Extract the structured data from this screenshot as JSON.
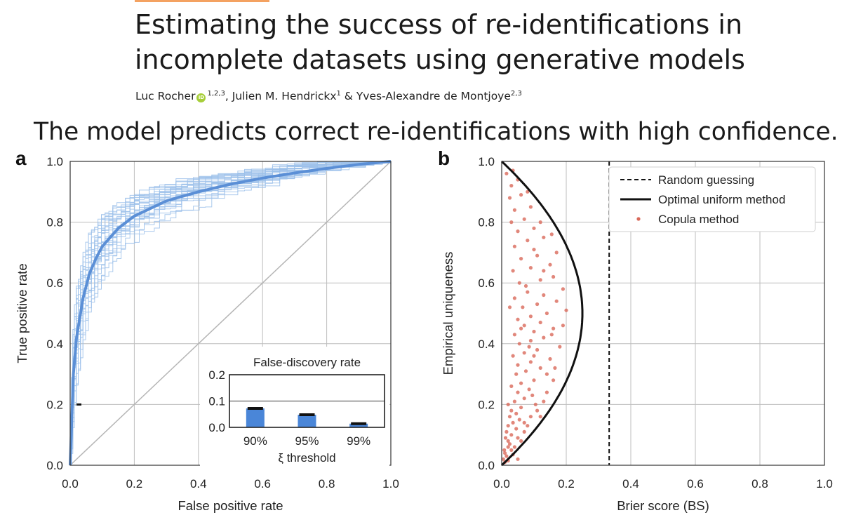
{
  "header": {
    "title_line1": "Estimating the success of re-identifications in",
    "title_line2": "incomplete datasets using generative models",
    "authors": [
      {
        "name": "Luc Rocher",
        "sup": "1,2,3",
        "orcid": true,
        "sep": ", "
      },
      {
        "name": "Julien M. Hendrickx",
        "sup": "1",
        "orcid": false,
        "sep": " & "
      },
      {
        "name": "Yves-Alexandre de Montjoye",
        "sup": "2,3",
        "orcid": false,
        "sep": ""
      }
    ],
    "orcid_label": "iD",
    "headline": "The model predicts correct re-identifications with high confidence."
  },
  "colors": {
    "roc_main": "#5b8fd6",
    "roc_faint": "#9cc1ea",
    "bar": "#4a86d8",
    "dot": "#d9695a",
    "grid": "#bdbdbd"
  },
  "chart_data": [
    {
      "panel": "a",
      "type": "line",
      "title": "",
      "xlabel": "False positive rate",
      "ylabel": "True positive rate",
      "xlim": [
        0,
        1
      ],
      "ylim": [
        0,
        1
      ],
      "xticks": [
        "0.0",
        "0.2",
        "0.4",
        "0.6",
        "0.8",
        "1.0"
      ],
      "yticks": [
        "0.0",
        "0.2",
        "0.4",
        "0.6",
        "0.8",
        "1.0"
      ],
      "grid": true,
      "series": [
        {
          "role": "mean-roc",
          "x": [
            0,
            0.01,
            0.02,
            0.04,
            0.06,
            0.08,
            0.1,
            0.15,
            0.2,
            0.3,
            0.4,
            0.5,
            0.6,
            0.7,
            0.8,
            0.9,
            1.0
          ],
          "y": [
            0,
            0.3,
            0.42,
            0.55,
            0.63,
            0.68,
            0.72,
            0.78,
            0.82,
            0.87,
            0.9,
            0.925,
            0.945,
            0.962,
            0.977,
            0.99,
            1.0
          ]
        },
        {
          "role": "diagonal",
          "x": [
            0,
            1
          ],
          "y": [
            0,
            1
          ]
        }
      ],
      "faint_roc_count": 30,
      "inset": {
        "type": "bar",
        "title": "False-discovery rate",
        "xlabel": "ξ threshold",
        "categories": [
          "90%",
          "95%",
          "99%"
        ],
        "values": [
          0.072,
          0.048,
          0.014
        ],
        "ylim": [
          0,
          0.2
        ],
        "yticks": [
          "0.0",
          "0.1",
          "0.2"
        ],
        "reference_line": 0.1
      }
    },
    {
      "panel": "b",
      "type": "scatter",
      "title": "",
      "xlabel": "Brier score (BS)",
      "ylabel": "Empirical uniqueness",
      "xlim": [
        0,
        1
      ],
      "ylim": [
        0,
        1
      ],
      "xticks": [
        "0.0",
        "0.2",
        "0.4",
        "0.6",
        "0.8",
        "1.0"
      ],
      "yticks": [
        "0.0",
        "0.2",
        "0.4",
        "0.6",
        "0.8",
        "1.0"
      ],
      "grid": true,
      "legend_position": "top-right",
      "legend": [
        "Random guessing",
        "Optimal uniform method",
        "Copula method"
      ],
      "random_guessing_bs": 0.333,
      "optimal_curve": "BS = u(1 - u)",
      "points": [
        [
          0.01,
          0.01
        ],
        [
          0.005,
          0.02
        ],
        [
          0.015,
          0.03
        ],
        [
          0.02,
          0.015
        ],
        [
          0.01,
          0.04
        ],
        [
          0.03,
          0.05
        ],
        [
          0.025,
          0.07
        ],
        [
          0.04,
          0.06
        ],
        [
          0.02,
          0.08
        ],
        [
          0.05,
          0.09
        ],
        [
          0.03,
          0.1
        ],
        [
          0.06,
          0.08
        ],
        [
          0.015,
          0.11
        ],
        [
          0.045,
          0.12
        ],
        [
          0.07,
          0.11
        ],
        [
          0.02,
          0.13
        ],
        [
          0.035,
          0.14
        ],
        [
          0.055,
          0.15
        ],
        [
          0.08,
          0.13
        ],
        [
          0.025,
          0.16
        ],
        [
          0.045,
          0.17
        ],
        [
          0.03,
          0.18
        ],
        [
          0.06,
          0.19
        ],
        [
          0.02,
          0.2
        ],
        [
          0.09,
          0.16
        ],
        [
          0.04,
          0.21
        ],
        [
          0.07,
          0.22
        ],
        [
          0.11,
          0.18
        ],
        [
          0.05,
          0.24
        ],
        [
          0.085,
          0.25
        ],
        [
          0.13,
          0.21
        ],
        [
          0.03,
          0.26
        ],
        [
          0.06,
          0.27
        ],
        [
          0.1,
          0.28
        ],
        [
          0.045,
          0.3
        ],
        [
          0.14,
          0.24
        ],
        [
          0.075,
          0.31
        ],
        [
          0.12,
          0.32
        ],
        [
          0.05,
          0.33
        ],
        [
          0.09,
          0.34
        ],
        [
          0.16,
          0.28
        ],
        [
          0.035,
          0.36
        ],
        [
          0.07,
          0.37
        ],
        [
          0.11,
          0.38
        ],
        [
          0.15,
          0.35
        ],
        [
          0.055,
          0.4
        ],
        [
          0.09,
          0.41
        ],
        [
          0.13,
          0.42
        ],
        [
          0.18,
          0.39
        ],
        [
          0.04,
          0.43
        ],
        [
          0.1,
          0.44
        ],
        [
          0.16,
          0.45
        ],
        [
          0.07,
          0.46
        ],
        [
          0.12,
          0.47
        ],
        [
          0.19,
          0.46
        ],
        [
          0.05,
          0.48
        ],
        [
          0.09,
          0.49
        ],
        [
          0.14,
          0.5
        ],
        [
          0.2,
          0.51
        ],
        [
          0.065,
          0.52
        ],
        [
          0.11,
          0.53
        ],
        [
          0.17,
          0.54
        ],
        [
          0.04,
          0.55
        ],
        [
          0.13,
          0.56
        ],
        [
          0.08,
          0.57
        ],
        [
          0.19,
          0.58
        ],
        [
          0.055,
          0.6
        ],
        [
          0.12,
          0.61
        ],
        [
          0.16,
          0.62
        ],
        [
          0.035,
          0.64
        ],
        [
          0.09,
          0.65
        ],
        [
          0.15,
          0.66
        ],
        [
          0.06,
          0.68
        ],
        [
          0.11,
          0.69
        ],
        [
          0.17,
          0.7
        ],
        [
          0.04,
          0.72
        ],
        [
          0.08,
          0.74
        ],
        [
          0.13,
          0.75
        ],
        [
          0.05,
          0.77
        ],
        [
          0.1,
          0.78
        ],
        [
          0.155,
          0.76
        ],
        [
          0.03,
          0.8
        ],
        [
          0.07,
          0.81
        ],
        [
          0.12,
          0.8
        ],
        [
          0.04,
          0.84
        ],
        [
          0.09,
          0.85
        ],
        [
          0.025,
          0.88
        ],
        [
          0.06,
          0.89
        ],
        [
          0.03,
          0.92
        ],
        [
          0.05,
          0.94
        ],
        [
          0.015,
          0.96
        ],
        [
          0.035,
          0.97
        ],
        [
          0.08,
          0.9
        ],
        [
          0.1,
          0.71
        ],
        [
          0.13,
          0.64
        ],
        [
          0.075,
          0.59
        ],
        [
          0.1,
          0.36
        ],
        [
          0.155,
          0.43
        ],
        [
          0.06,
          0.45
        ],
        [
          0.025,
          0.52
        ],
        [
          0.14,
          0.3
        ],
        [
          0.12,
          0.16
        ],
        [
          0.095,
          0.23
        ],
        [
          0.02,
          0.06
        ],
        [
          0.008,
          0.05
        ],
        [
          0.035,
          0.035
        ],
        [
          0.05,
          0.02
        ],
        [
          0.012,
          0.09
        ],
        [
          0.07,
          0.14
        ],
        [
          0.105,
          0.2
        ],
        [
          0.165,
          0.32
        ],
        [
          0.085,
          0.39
        ]
      ]
    }
  ]
}
